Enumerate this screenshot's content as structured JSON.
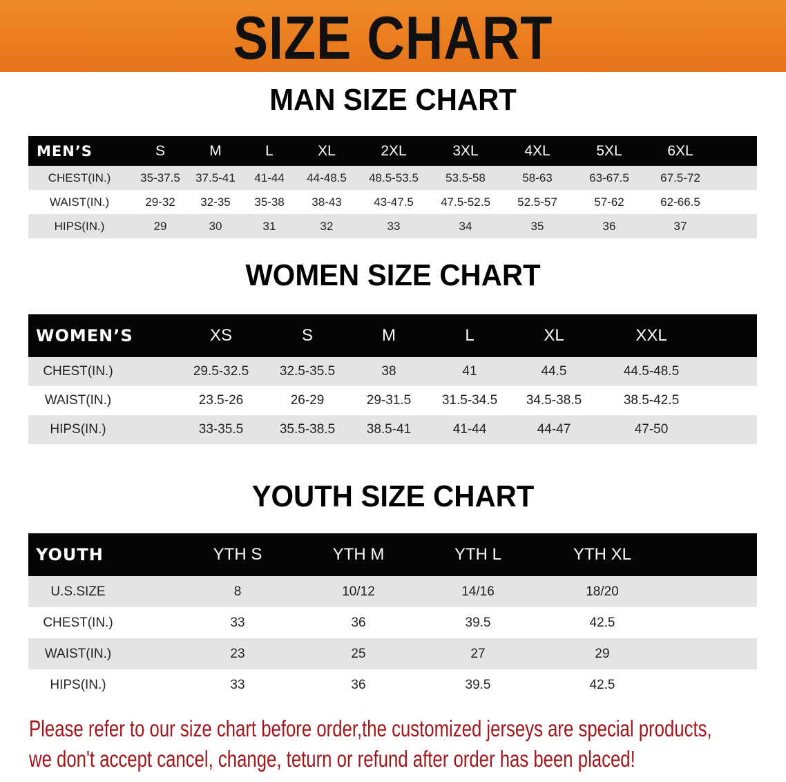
{
  "banner_title": "SIZE CHART",
  "men": {
    "title": "MAN SIZE CHART",
    "header": [
      "MEN’S",
      "S",
      "M",
      "L",
      "XL",
      "2XL",
      "3XL",
      "4XL",
      "5XL",
      "6XL"
    ],
    "rows": [
      [
        "CHEST(IN.)",
        "35-37.5",
        "37.5-41",
        "41-44",
        "44-48.5",
        "48.5-53.5",
        "53.5-58",
        "58-63",
        "63-67.5",
        "67.5-72"
      ],
      [
        "WAIST(IN.)",
        "29-32",
        "32-35",
        "35-38",
        "38-43",
        "43-47.5",
        "47.5-52.5",
        "52.5-57",
        "57-62",
        "62-66.5"
      ],
      [
        "HIPS(IN.)",
        "29",
        "30",
        "31",
        "32",
        "33",
        "34",
        "35",
        "36",
        "37"
      ]
    ]
  },
  "women": {
    "title": "WOMEN SIZE CHART",
    "header": [
      "WOMEN’S",
      "XS",
      "S",
      "M",
      "L",
      "XL",
      "XXL"
    ],
    "rows": [
      [
        "CHEST(IN.)",
        "29.5-32.5",
        "32.5-35.5",
        "38",
        "41",
        "44.5",
        "44.5-48.5"
      ],
      [
        "WAIST(IN.)",
        "23.5-26",
        "26-29",
        "29-31.5",
        "31.5-34.5",
        "34.5-38.5",
        "38.5-42.5"
      ],
      [
        "HIPS(IN.)",
        "33-35.5",
        "35.5-38.5",
        "38.5-41",
        "41-44",
        "44-47",
        "47-50"
      ]
    ]
  },
  "youth": {
    "title": "YOUTH SIZE CHART",
    "header": [
      "YOUTH",
      "YTH S",
      "YTH M",
      "YTH L",
      "YTH XL"
    ],
    "rows": [
      [
        "U.S.SIZE",
        "8",
        "10/12",
        "14/16",
        "18/20"
      ],
      [
        "CHEST(IN.)",
        "33",
        "36",
        "39.5",
        "42.5"
      ],
      [
        "WAIST(IN.)",
        "23",
        "25",
        "27",
        "29"
      ],
      [
        "HIPS(IN.)",
        "33",
        "36",
        "39.5",
        "42.5"
      ]
    ]
  },
  "note": {
    "line1": "Please refer to our size chart before order,the customized jerseys are special products,",
    "line2": "we don't accept cancel, change, teturn or refund after order has been placed!"
  },
  "colors": {
    "banner": "#e6731a",
    "header_bg": "#050505",
    "row_alt": "#e4e4e4",
    "note": "#a3161a"
  }
}
